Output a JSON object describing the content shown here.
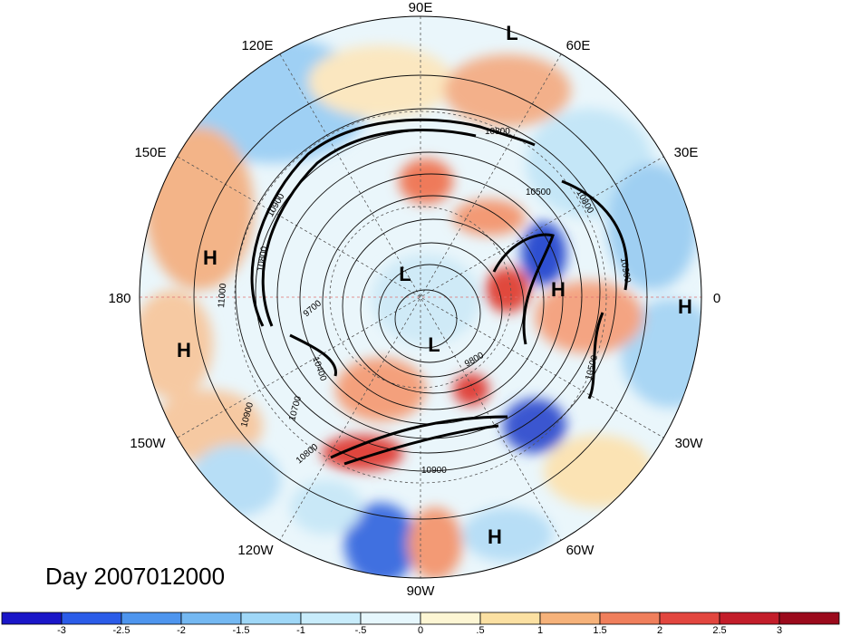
{
  "lon_labels": {
    "e90": "90E",
    "e60": "60E",
    "e30": "30E",
    "zero": "0",
    "w30": "30W",
    "w60": "60W",
    "w90": "90W",
    "w120": "120W",
    "w150": "150W",
    "d180": "180",
    "e150": "150E",
    "e120": "120E"
  },
  "pressure_markers": [
    {
      "id": "low-top",
      "text": "L"
    },
    {
      "id": "low-pole",
      "text": "L"
    },
    {
      "id": "low-center",
      "text": "L"
    },
    {
      "id": "high-pacific-upper",
      "text": "H"
    },
    {
      "id": "high-pacific-lower",
      "text": "H"
    },
    {
      "id": "high-europe",
      "text": "H"
    },
    {
      "id": "high-east",
      "text": "H"
    },
    {
      "id": "high-atlantic",
      "text": "H"
    }
  ],
  "contour_labels": [
    "10800",
    "10500",
    "10900",
    "10800",
    "10900",
    "10400",
    "11000",
    "9700",
    "9800",
    "10700",
    "10800",
    "10900",
    "10900",
    "10800",
    "10500"
  ],
  "title": "Day 2007012000",
  "colorbar": {
    "ticks": [
      "-3",
      "-2.5",
      "-2",
      "-1.5",
      "-1",
      "-.5",
      "0",
      ".5",
      "1",
      "1.5",
      "2",
      "2.5",
      "3"
    ],
    "colors": [
      "#1a16c8",
      "#2b5ce8",
      "#4e95ee",
      "#74b8f2",
      "#9fd7f7",
      "#c8ecfb",
      "#e6f7fd",
      "#fdf6d4",
      "#fbe0a2",
      "#f6b27a",
      "#f07f5c",
      "#e2463f",
      "#c31d2a",
      "#9b0a1c"
    ]
  }
}
